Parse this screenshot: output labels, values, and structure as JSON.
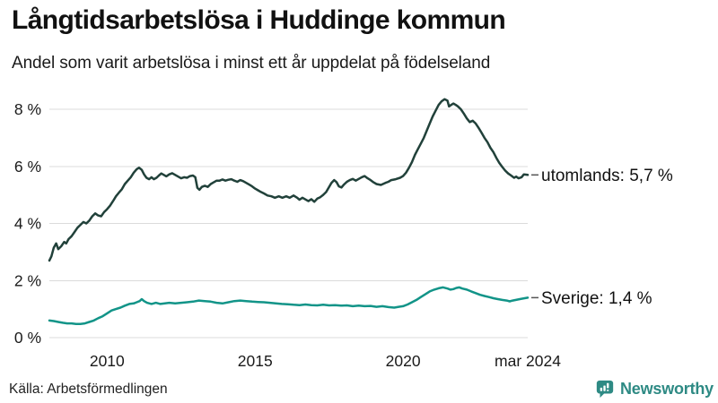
{
  "chart_data": {
    "type": "line",
    "title": "Långtidsarbetslösa i Huddinge kommun",
    "subtitle": "Andel som varit arbetslösa i minst ett år uppdelat på födelseland",
    "source": "Källa: Arbetsförmedlingen",
    "unit": "%",
    "grid": true,
    "legend_position": "end-of-line-labels",
    "x_axis": {
      "range_years": [
        2008.05,
        2024.21
      ],
      "ticks": [
        {
          "label": "2010",
          "year": 2010
        },
        {
          "label": "2015",
          "year": 2015
        },
        {
          "label": "2020",
          "year": 2020
        },
        {
          "label": "mar 2024",
          "year": 2024.21
        }
      ]
    },
    "y_axis": {
      "range": [
        0,
        8.5
      ],
      "ticks": [
        {
          "label": "0 %",
          "value": 0
        },
        {
          "label": "2 %",
          "value": 2
        },
        {
          "label": "4 %",
          "value": 4
        },
        {
          "label": "6 %",
          "value": 6
        },
        {
          "label": "8 %",
          "value": 8
        }
      ]
    },
    "series": [
      {
        "id": "utomlands",
        "name": "utomlands",
        "end_label": "utomlands: 5,7 %",
        "last_value": 5.7,
        "last_value_label": "5,7 %",
        "color": "#21413a",
        "points": [
          [
            2008.05,
            2.7
          ],
          [
            2008.12,
            2.85
          ],
          [
            2008.2,
            3.15
          ],
          [
            2008.28,
            3.3
          ],
          [
            2008.35,
            3.1
          ],
          [
            2008.45,
            3.2
          ],
          [
            2008.55,
            3.35
          ],
          [
            2008.62,
            3.3
          ],
          [
            2008.7,
            3.45
          ],
          [
            2008.8,
            3.55
          ],
          [
            2008.9,
            3.7
          ],
          [
            2009.0,
            3.85
          ],
          [
            2009.1,
            3.95
          ],
          [
            2009.2,
            4.05
          ],
          [
            2009.3,
            4.0
          ],
          [
            2009.4,
            4.1
          ],
          [
            2009.5,
            4.25
          ],
          [
            2009.6,
            4.35
          ],
          [
            2009.7,
            4.28
          ],
          [
            2009.8,
            4.25
          ],
          [
            2009.9,
            4.4
          ],
          [
            2010.0,
            4.5
          ],
          [
            2010.1,
            4.62
          ],
          [
            2010.2,
            4.78
          ],
          [
            2010.3,
            4.95
          ],
          [
            2010.4,
            5.08
          ],
          [
            2010.5,
            5.2
          ],
          [
            2010.6,
            5.38
          ],
          [
            2010.7,
            5.5
          ],
          [
            2010.8,
            5.62
          ],
          [
            2010.9,
            5.78
          ],
          [
            2011.0,
            5.9
          ],
          [
            2011.08,
            5.95
          ],
          [
            2011.17,
            5.88
          ],
          [
            2011.25,
            5.72
          ],
          [
            2011.33,
            5.6
          ],
          [
            2011.42,
            5.55
          ],
          [
            2011.5,
            5.62
          ],
          [
            2011.58,
            5.55
          ],
          [
            2011.67,
            5.6
          ],
          [
            2011.75,
            5.68
          ],
          [
            2011.83,
            5.75
          ],
          [
            2011.92,
            5.7
          ],
          [
            2012.0,
            5.65
          ],
          [
            2012.1,
            5.72
          ],
          [
            2012.2,
            5.76
          ],
          [
            2012.3,
            5.7
          ],
          [
            2012.4,
            5.64
          ],
          [
            2012.5,
            5.58
          ],
          [
            2012.6,
            5.62
          ],
          [
            2012.7,
            5.6
          ],
          [
            2012.8,
            5.66
          ],
          [
            2012.9,
            5.68
          ],
          [
            2012.98,
            5.62
          ],
          [
            2013.05,
            5.25
          ],
          [
            2013.12,
            5.18
          ],
          [
            2013.2,
            5.28
          ],
          [
            2013.3,
            5.32
          ],
          [
            2013.4,
            5.28
          ],
          [
            2013.5,
            5.38
          ],
          [
            2013.6,
            5.44
          ],
          [
            2013.7,
            5.5
          ],
          [
            2013.8,
            5.5
          ],
          [
            2013.9,
            5.54
          ],
          [
            2014.0,
            5.5
          ],
          [
            2014.1,
            5.53
          ],
          [
            2014.2,
            5.55
          ],
          [
            2014.3,
            5.5
          ],
          [
            2014.4,
            5.46
          ],
          [
            2014.5,
            5.52
          ],
          [
            2014.6,
            5.48
          ],
          [
            2014.7,
            5.42
          ],
          [
            2014.8,
            5.36
          ],
          [
            2014.9,
            5.3
          ],
          [
            2015.0,
            5.22
          ],
          [
            2015.1,
            5.16
          ],
          [
            2015.2,
            5.1
          ],
          [
            2015.3,
            5.05
          ],
          [
            2015.42,
            4.98
          ],
          [
            2015.55,
            4.95
          ],
          [
            2015.67,
            4.9
          ],
          [
            2015.8,
            4.95
          ],
          [
            2015.92,
            4.9
          ],
          [
            2016.05,
            4.95
          ],
          [
            2016.17,
            4.9
          ],
          [
            2016.3,
            4.98
          ],
          [
            2016.42,
            4.9
          ],
          [
            2016.5,
            4.83
          ],
          [
            2016.6,
            4.9
          ],
          [
            2016.7,
            4.84
          ],
          [
            2016.8,
            4.78
          ],
          [
            2016.9,
            4.85
          ],
          [
            2017.0,
            4.76
          ],
          [
            2017.1,
            4.87
          ],
          [
            2017.2,
            4.92
          ],
          [
            2017.3,
            5.0
          ],
          [
            2017.4,
            5.1
          ],
          [
            2017.5,
            5.28
          ],
          [
            2017.58,
            5.42
          ],
          [
            2017.67,
            5.52
          ],
          [
            2017.75,
            5.45
          ],
          [
            2017.83,
            5.3
          ],
          [
            2017.92,
            5.26
          ],
          [
            2018.0,
            5.36
          ],
          [
            2018.1,
            5.46
          ],
          [
            2018.2,
            5.52
          ],
          [
            2018.3,
            5.56
          ],
          [
            2018.4,
            5.5
          ],
          [
            2018.5,
            5.56
          ],
          [
            2018.6,
            5.62
          ],
          [
            2018.7,
            5.66
          ],
          [
            2018.8,
            5.58
          ],
          [
            2018.9,
            5.52
          ],
          [
            2019.0,
            5.44
          ],
          [
            2019.1,
            5.38
          ],
          [
            2019.25,
            5.35
          ],
          [
            2019.4,
            5.42
          ],
          [
            2019.5,
            5.46
          ],
          [
            2019.6,
            5.52
          ],
          [
            2019.75,
            5.55
          ],
          [
            2019.9,
            5.6
          ],
          [
            2020.0,
            5.66
          ],
          [
            2020.1,
            5.78
          ],
          [
            2020.2,
            5.95
          ],
          [
            2020.3,
            6.15
          ],
          [
            2020.4,
            6.4
          ],
          [
            2020.5,
            6.6
          ],
          [
            2020.6,
            6.8
          ],
          [
            2020.7,
            7.0
          ],
          [
            2020.8,
            7.25
          ],
          [
            2020.9,
            7.5
          ],
          [
            2021.0,
            7.75
          ],
          [
            2021.1,
            7.95
          ],
          [
            2021.2,
            8.15
          ],
          [
            2021.3,
            8.28
          ],
          [
            2021.4,
            8.35
          ],
          [
            2021.5,
            8.3
          ],
          [
            2021.55,
            8.1
          ],
          [
            2021.62,
            8.15
          ],
          [
            2021.7,
            8.2
          ],
          [
            2021.78,
            8.15
          ],
          [
            2021.85,
            8.1
          ],
          [
            2021.95,
            8.0
          ],
          [
            2022.05,
            7.85
          ],
          [
            2022.15,
            7.68
          ],
          [
            2022.25,
            7.55
          ],
          [
            2022.35,
            7.6
          ],
          [
            2022.45,
            7.5
          ],
          [
            2022.55,
            7.35
          ],
          [
            2022.65,
            7.18
          ],
          [
            2022.75,
            7.0
          ],
          [
            2022.85,
            6.85
          ],
          [
            2022.95,
            6.65
          ],
          [
            2023.05,
            6.5
          ],
          [
            2023.15,
            6.3
          ],
          [
            2023.25,
            6.12
          ],
          [
            2023.35,
            5.98
          ],
          [
            2023.45,
            5.85
          ],
          [
            2023.55,
            5.75
          ],
          [
            2023.65,
            5.68
          ],
          [
            2023.75,
            5.6
          ],
          [
            2023.82,
            5.64
          ],
          [
            2023.9,
            5.58
          ],
          [
            2024.0,
            5.62
          ],
          [
            2024.08,
            5.72
          ],
          [
            2024.21,
            5.7
          ]
        ]
      },
      {
        "id": "sverige",
        "name": "Sverige",
        "end_label": "Sverige: 1,4 %",
        "last_value": 1.4,
        "last_value_label": "1,4 %",
        "color": "#129488",
        "points": [
          [
            2008.05,
            0.6
          ],
          [
            2008.2,
            0.58
          ],
          [
            2008.35,
            0.55
          ],
          [
            2008.5,
            0.52
          ],
          [
            2008.65,
            0.5
          ],
          [
            2008.8,
            0.5
          ],
          [
            2008.95,
            0.48
          ],
          [
            2009.1,
            0.48
          ],
          [
            2009.25,
            0.5
          ],
          [
            2009.4,
            0.55
          ],
          [
            2009.55,
            0.6
          ],
          [
            2009.7,
            0.68
          ],
          [
            2009.85,
            0.75
          ],
          [
            2010.0,
            0.85
          ],
          [
            2010.15,
            0.95
          ],
          [
            2010.3,
            1.0
          ],
          [
            2010.45,
            1.05
          ],
          [
            2010.6,
            1.12
          ],
          [
            2010.75,
            1.18
          ],
          [
            2010.9,
            1.2
          ],
          [
            2011.0,
            1.24
          ],
          [
            2011.1,
            1.28
          ],
          [
            2011.17,
            1.35
          ],
          [
            2011.25,
            1.28
          ],
          [
            2011.35,
            1.22
          ],
          [
            2011.5,
            1.18
          ],
          [
            2011.65,
            1.22
          ],
          [
            2011.8,
            1.18
          ],
          [
            2011.95,
            1.2
          ],
          [
            2012.1,
            1.22
          ],
          [
            2012.3,
            1.2
          ],
          [
            2012.5,
            1.22
          ],
          [
            2012.7,
            1.24
          ],
          [
            2012.9,
            1.26
          ],
          [
            2013.1,
            1.3
          ],
          [
            2013.3,
            1.28
          ],
          [
            2013.5,
            1.26
          ],
          [
            2013.7,
            1.22
          ],
          [
            2013.9,
            1.2
          ],
          [
            2014.1,
            1.24
          ],
          [
            2014.3,
            1.28
          ],
          [
            2014.5,
            1.3
          ],
          [
            2014.7,
            1.28
          ],
          [
            2014.9,
            1.26
          ],
          [
            2015.1,
            1.25
          ],
          [
            2015.3,
            1.24
          ],
          [
            2015.5,
            1.22
          ],
          [
            2015.7,
            1.2
          ],
          [
            2015.9,
            1.18
          ],
          [
            2016.1,
            1.17
          ],
          [
            2016.3,
            1.15
          ],
          [
            2016.5,
            1.14
          ],
          [
            2016.7,
            1.16
          ],
          [
            2016.9,
            1.14
          ],
          [
            2017.1,
            1.13
          ],
          [
            2017.3,
            1.15
          ],
          [
            2017.5,
            1.13
          ],
          [
            2017.7,
            1.14
          ],
          [
            2017.9,
            1.12
          ],
          [
            2018.1,
            1.13
          ],
          [
            2018.3,
            1.1
          ],
          [
            2018.5,
            1.12
          ],
          [
            2018.7,
            1.1
          ],
          [
            2018.9,
            1.11
          ],
          [
            2019.1,
            1.08
          ],
          [
            2019.3,
            1.1
          ],
          [
            2019.5,
            1.07
          ],
          [
            2019.7,
            1.05
          ],
          [
            2019.85,
            1.08
          ],
          [
            2020.0,
            1.1
          ],
          [
            2020.15,
            1.16
          ],
          [
            2020.3,
            1.24
          ],
          [
            2020.45,
            1.32
          ],
          [
            2020.6,
            1.42
          ],
          [
            2020.75,
            1.52
          ],
          [
            2020.9,
            1.62
          ],
          [
            2021.05,
            1.68
          ],
          [
            2021.2,
            1.73
          ],
          [
            2021.35,
            1.76
          ],
          [
            2021.5,
            1.72
          ],
          [
            2021.6,
            1.68
          ],
          [
            2021.7,
            1.7
          ],
          [
            2021.8,
            1.74
          ],
          [
            2021.9,
            1.76
          ],
          [
            2022.0,
            1.72
          ],
          [
            2022.15,
            1.68
          ],
          [
            2022.3,
            1.62
          ],
          [
            2022.45,
            1.56
          ],
          [
            2022.6,
            1.5
          ],
          [
            2022.75,
            1.46
          ],
          [
            2022.9,
            1.42
          ],
          [
            2023.05,
            1.38
          ],
          [
            2023.2,
            1.35
          ],
          [
            2023.35,
            1.32
          ],
          [
            2023.5,
            1.3
          ],
          [
            2023.6,
            1.27
          ],
          [
            2023.7,
            1.3
          ],
          [
            2023.85,
            1.33
          ],
          [
            2024.0,
            1.36
          ],
          [
            2024.21,
            1.4
          ]
        ]
      }
    ]
  },
  "branding": {
    "name": "Newsworthy",
    "logo_icon": "bar-chart-speech-bubble-icon",
    "color": "#2e8a84"
  },
  "colors": {
    "utomlands_line": "#21413a",
    "sverige_line": "#129488",
    "gridline": "#dbdbdb",
    "text": "#111111",
    "leader_dash": "#555555"
  }
}
